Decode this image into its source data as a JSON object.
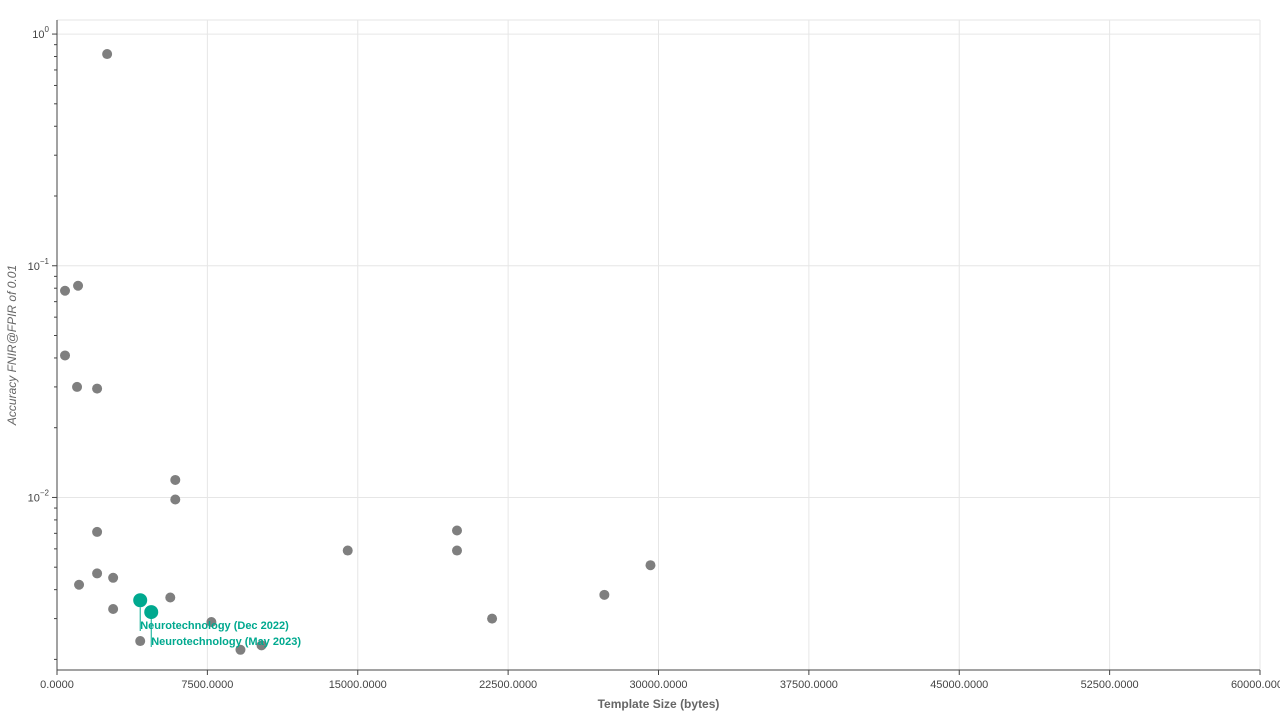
{
  "chart_data": {
    "type": "scatter",
    "xlabel": "Template Size (bytes)",
    "ylabel": "Accuracy FNIR@FPIR of 0.01",
    "xlim": [
      0,
      60000
    ],
    "ylim": [
      0.0018,
      1.15
    ],
    "y_scale": "log",
    "grid": true,
    "x_ticks": [
      0,
      7500,
      15000,
      22500,
      30000,
      37500,
      45000,
      52500,
      60000
    ],
    "x_tick_labels": [
      "0.0000",
      "7500.0000",
      "15000.0000",
      "22500.0000",
      "30000.0000",
      "37500.0000",
      "45000.0000",
      "52500.0000",
      "60000.0000"
    ],
    "y_ticks": [
      {
        "value": 1,
        "base": "10",
        "exp": "0"
      },
      {
        "value": 0.1,
        "base": "10",
        "exp": "−1"
      },
      {
        "value": 0.01,
        "base": "10",
        "exp": "−2"
      }
    ],
    "colors": {
      "points": "#7f7f7f",
      "highlight": "#00a98f"
    },
    "points": [
      {
        "x": 2500,
        "y": 0.82
      },
      {
        "x": 400,
        "y": 0.078
      },
      {
        "x": 1050,
        "y": 0.082
      },
      {
        "x": 400,
        "y": 0.041
      },
      {
        "x": 1000,
        "y": 0.03
      },
      {
        "x": 2000,
        "y": 0.0295
      },
      {
        "x": 5900,
        "y": 0.0119
      },
      {
        "x": 5900,
        "y": 0.0098
      },
      {
        "x": 2000,
        "y": 0.0071
      },
      {
        "x": 19950,
        "y": 0.0072
      },
      {
        "x": 14500,
        "y": 0.0059
      },
      {
        "x": 19950,
        "y": 0.0059
      },
      {
        "x": 29600,
        "y": 0.0051
      },
      {
        "x": 2000,
        "y": 0.0047
      },
      {
        "x": 2800,
        "y": 0.0045
      },
      {
        "x": 1100,
        "y": 0.0042
      },
      {
        "x": 5650,
        "y": 0.0037
      },
      {
        "x": 27300,
        "y": 0.0038
      },
      {
        "x": 2800,
        "y": 0.0033
      },
      {
        "x": 7700,
        "y": 0.0029
      },
      {
        "x": 21700,
        "y": 0.003
      },
      {
        "x": 4150,
        "y": 0.0024
      },
      {
        "x": 9150,
        "y": 0.0022
      },
      {
        "x": 10200,
        "y": 0.0023
      }
    ],
    "highlights": [
      {
        "name": "Neurotechnology (Dec 2022)",
        "x": 4150,
        "y": 0.0036
      },
      {
        "name": "Neurotechnology (May 2023)",
        "x": 4700,
        "y": 0.0032
      }
    ]
  }
}
